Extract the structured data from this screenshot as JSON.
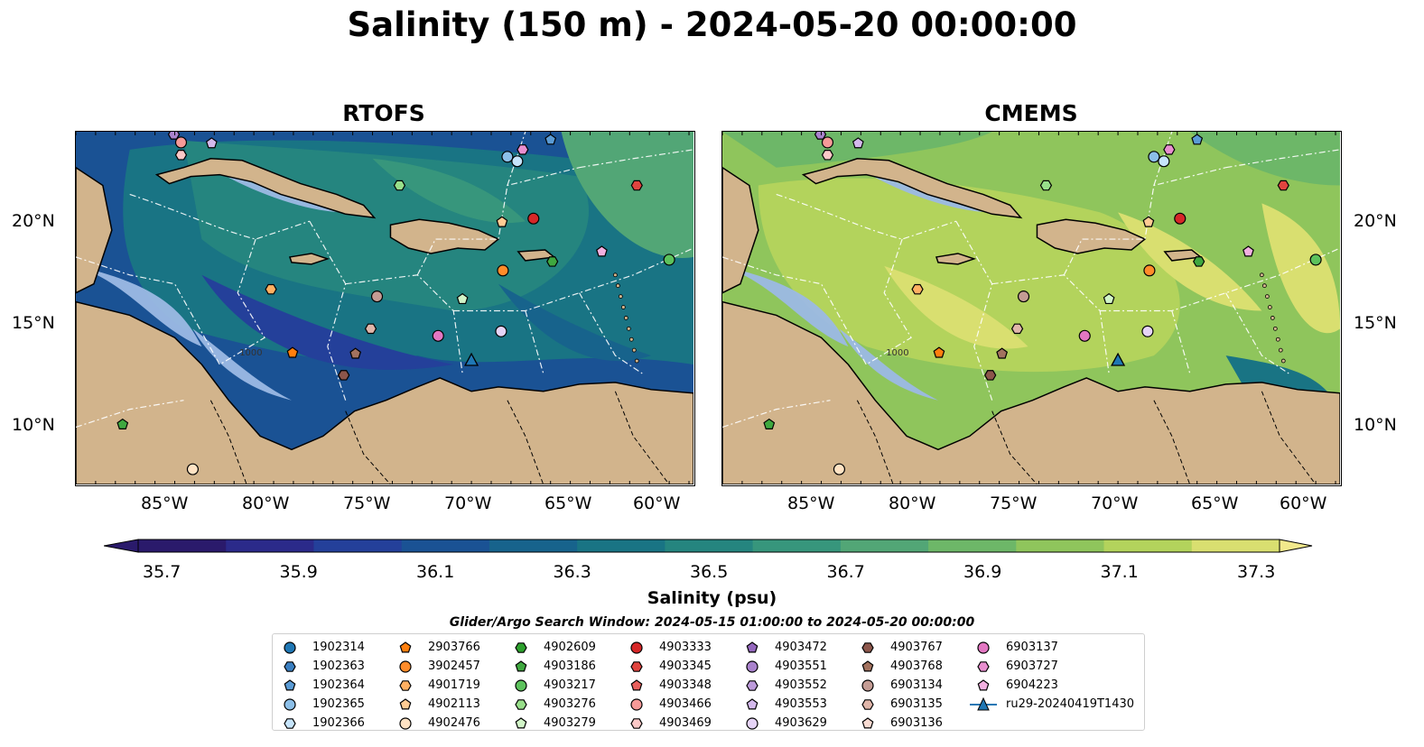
{
  "title": "Salinity (150 m) - 2024-05-20 00:00:00",
  "panels": [
    {
      "title": "RTOFS"
    },
    {
      "title": "CMEMS"
    }
  ],
  "lon_labels": [
    "85°W",
    "80°W",
    "75°W",
    "70°W",
    "65°W",
    "60°W"
  ],
  "lat_labels": [
    "20°N",
    "15°N",
    "10°N"
  ],
  "bathymetry_label": "1000",
  "colorbar": {
    "label": "Salinity (psu)",
    "ticks": [
      "35.7",
      "35.9",
      "36.1",
      "36.3",
      "36.5",
      "36.7",
      "36.9",
      "37.1",
      "37.3"
    ],
    "colors": [
      "#2a1a6b",
      "#2b2a8a",
      "#24409a",
      "#1a5294",
      "#17638c",
      "#197484",
      "#25857f",
      "#37967c",
      "#52a676",
      "#6db768",
      "#8fc55c",
      "#b3d35c",
      "#d9df70"
    ],
    "extend": "both"
  },
  "search_window": "Glider/Argo Search Window: 2024-05-15 01:00:00 to 2024-05-20 00:00:00",
  "legend": {
    "columns": [
      [
        {
          "label": "1902314",
          "marker": "circle",
          "color": "#1f77b4"
        },
        {
          "label": "1902363",
          "marker": "hexagon",
          "color": "#3a7fc1"
        },
        {
          "label": "1902364",
          "marker": "pentagon",
          "color": "#5a9bd5"
        },
        {
          "label": "1902365",
          "marker": "circle",
          "color": "#8cbfe8"
        },
        {
          "label": "1902366",
          "marker": "hexagon",
          "color": "#c6e4fb"
        }
      ],
      [
        {
          "label": "2903766",
          "marker": "pentagon",
          "color": "#ff7f0e"
        },
        {
          "label": "3902457",
          "marker": "circle",
          "color": "#ff8c2a"
        },
        {
          "label": "4901719",
          "marker": "hexagon",
          "color": "#ffb062"
        },
        {
          "label": "4902113",
          "marker": "pentagon",
          "color": "#ffcc94"
        },
        {
          "label": "4902476",
          "marker": "circle",
          "color": "#ffe3c4"
        }
      ],
      [
        {
          "label": "4902609",
          "marker": "hexagon",
          "color": "#2ca02c"
        },
        {
          "label": "4903186",
          "marker": "pentagon",
          "color": "#3fa83f"
        },
        {
          "label": "4903217",
          "marker": "circle",
          "color": "#5cc25c"
        },
        {
          "label": "4903276",
          "marker": "hexagon",
          "color": "#98df8a"
        },
        {
          "label": "4903279",
          "marker": "pentagon",
          "color": "#d2f5c8"
        }
      ],
      [
        {
          "label": "4903333",
          "marker": "circle",
          "color": "#d62728"
        },
        {
          "label": "4903345",
          "marker": "hexagon",
          "color": "#e0443f"
        },
        {
          "label": "4903348",
          "marker": "pentagon",
          "color": "#e8605d"
        },
        {
          "label": "4903466",
          "marker": "circle",
          "color": "#f59a98"
        },
        {
          "label": "4903469",
          "marker": "hexagon",
          "color": "#fcc9c8"
        }
      ],
      [
        {
          "label": "4903472",
          "marker": "pentagon",
          "color": "#9467bd"
        },
        {
          "label": "4903551",
          "marker": "circle",
          "color": "#a982cc"
        },
        {
          "label": "4903552",
          "marker": "hexagon",
          "color": "#bd9bdb"
        },
        {
          "label": "4903553",
          "marker": "pentagon",
          "color": "#d4b9ec"
        },
        {
          "label": "4903629",
          "marker": "circle",
          "color": "#e6d4f7"
        }
      ],
      [
        {
          "label": "4903767",
          "marker": "hexagon",
          "color": "#8c564b"
        },
        {
          "label": "4903768",
          "marker": "pentagon",
          "color": "#a3725f"
        },
        {
          "label": "6903134",
          "marker": "circle",
          "color": "#c49c94"
        },
        {
          "label": "6903135",
          "marker": "hexagon",
          "color": "#e0b6aa"
        },
        {
          "label": "6903136",
          "marker": "pentagon",
          "color": "#f8dbd2"
        }
      ],
      [
        {
          "label": "6903137",
          "marker": "circle",
          "color": "#e377c2"
        },
        {
          "label": "6903727",
          "marker": "hexagon",
          "color": "#e98fd0"
        },
        {
          "label": "6904223",
          "marker": "pentagon",
          "color": "#f2b0e0"
        },
        {
          "label": "ru29-20240419T1430",
          "marker": "triangle-line",
          "color": "#1f77b4"
        }
      ]
    ]
  },
  "map_colors": {
    "land": "#d2b48c",
    "shelf": "#9cb9e4",
    "deep_pacific": "#2a1a6b"
  }
}
